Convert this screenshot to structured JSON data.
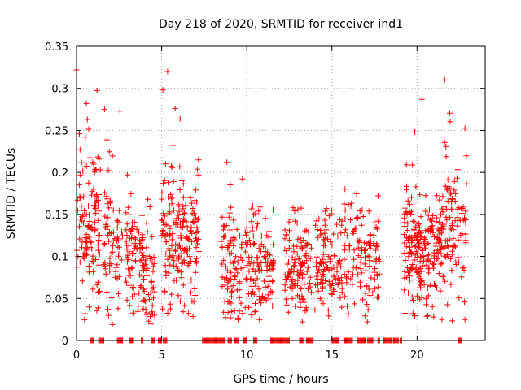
{
  "chart_data": {
    "type": "scatter",
    "title": "Day 218 of 2020, SRMTID for receiver ind1",
    "xlabel": "GPS time / hours",
    "ylabel": "SRMTID / TECUs",
    "xlim": [
      0,
      24
    ],
    "ylim": [
      0,
      0.35
    ],
    "xticks": [
      0,
      5,
      10,
      15,
      20
    ],
    "yticks": [
      0,
      0.05,
      0.1,
      0.15,
      0.2,
      0.25,
      0.3,
      0.35
    ],
    "xtick_labels": [
      "0",
      "5",
      "10",
      "15",
      "20"
    ],
    "ytick_labels": [
      "0",
      "0.05",
      "0.1",
      "0.15",
      "0.2",
      "0.25",
      "0.3",
      "0.35"
    ],
    "grid": true,
    "marker": "+",
    "color": "#ff0000",
    "series": [
      {
        "name": "ind1",
        "clusters": [
          {
            "x0": 0.0,
            "x1": 1.4,
            "median": 0.14,
            "spread": 0.045,
            "n": 120,
            "peak": 0.322
          },
          {
            "x0": 1.6,
            "x1": 2.7,
            "median": 0.11,
            "spread": 0.03,
            "n": 70,
            "peak": 0.275
          },
          {
            "x0": 2.9,
            "x1": 3.9,
            "median": 0.095,
            "spread": 0.028,
            "n": 70,
            "peak": 0.197
          },
          {
            "x0": 3.8,
            "x1": 4.6,
            "median": 0.08,
            "spread": 0.028,
            "n": 60,
            "peak": 0.168
          },
          {
            "x0": 5.0,
            "x1": 7.2,
            "median": 0.12,
            "spread": 0.038,
            "n": 190,
            "peak": 0.32
          },
          {
            "x0": 8.5,
            "x1": 9.8,
            "median": 0.09,
            "spread": 0.028,
            "n": 90,
            "peak": 0.212
          },
          {
            "x0": 9.9,
            "x1": 11.6,
            "median": 0.09,
            "spread": 0.028,
            "n": 120,
            "peak": 0.16
          },
          {
            "x0": 12.2,
            "x1": 13.8,
            "median": 0.085,
            "spread": 0.025,
            "n": 120,
            "peak": 0.158
          },
          {
            "x0": 14.0,
            "x1": 15.6,
            "median": 0.09,
            "spread": 0.026,
            "n": 110,
            "peak": 0.157
          },
          {
            "x0": 15.7,
            "x1": 17.8,
            "median": 0.1,
            "spread": 0.028,
            "n": 120,
            "peak": 0.18
          },
          {
            "x0": 19.2,
            "x1": 21.5,
            "median": 0.11,
            "spread": 0.028,
            "n": 230,
            "peak": 0.287
          },
          {
            "x0": 21.5,
            "x1": 22.9,
            "median": 0.13,
            "spread": 0.035,
            "n": 100,
            "peak": 0.31
          }
        ],
        "zero_segments": [
          [
            0.8,
            1.0
          ],
          [
            1.3,
            1.6
          ],
          [
            2.4,
            2.7
          ],
          [
            3.1,
            3.3
          ],
          [
            3.8,
            3.9
          ],
          [
            4.4,
            4.6
          ],
          [
            4.8,
            5.0
          ],
          [
            5.1,
            5.3
          ],
          [
            7.4,
            8.7
          ],
          [
            8.9,
            9.1
          ],
          [
            9.3,
            9.5
          ],
          [
            9.8,
            10.0
          ],
          [
            10.4,
            10.6
          ],
          [
            11.4,
            12.5
          ],
          [
            13.1,
            13.3
          ],
          [
            13.5,
            13.9
          ],
          [
            15.0,
            15.4
          ],
          [
            15.7,
            16.2
          ],
          [
            16.5,
            17.0
          ],
          [
            17.1,
            17.4
          ],
          [
            17.7,
            17.8
          ],
          [
            18.0,
            18.5
          ],
          [
            18.6,
            18.9
          ],
          [
            19.0,
            19.1
          ],
          [
            22.4,
            22.6
          ]
        ]
      }
    ]
  }
}
